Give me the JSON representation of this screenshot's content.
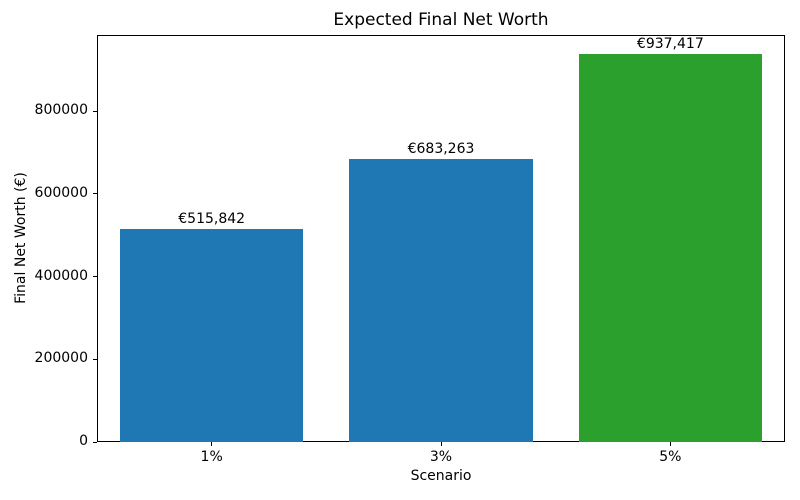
{
  "chart_data": {
    "type": "bar",
    "title": "Expected Final Net Worth",
    "xlabel": "Scenario",
    "ylabel": "Final Net Worth (€)",
    "categories": [
      "1%",
      "3%",
      "5%"
    ],
    "values": [
      515842,
      683263,
      937417
    ],
    "bar_labels": [
      "€515,842",
      "€683,263",
      "€937,417"
    ],
    "bar_colors": [
      "#1f77b4",
      "#1f77b4",
      "#2ca02c"
    ],
    "ylim": [
      0,
      984288
    ],
    "yticks": [
      0,
      200000,
      400000,
      600000,
      800000
    ],
    "ytick_labels": [
      "0",
      "200000",
      "400000",
      "600000",
      "800000"
    ],
    "bar_width_fraction": 0.8,
    "grid": false,
    "legend_position": "none",
    "background_color": "#ffffff",
    "text_color": "#000000"
  }
}
